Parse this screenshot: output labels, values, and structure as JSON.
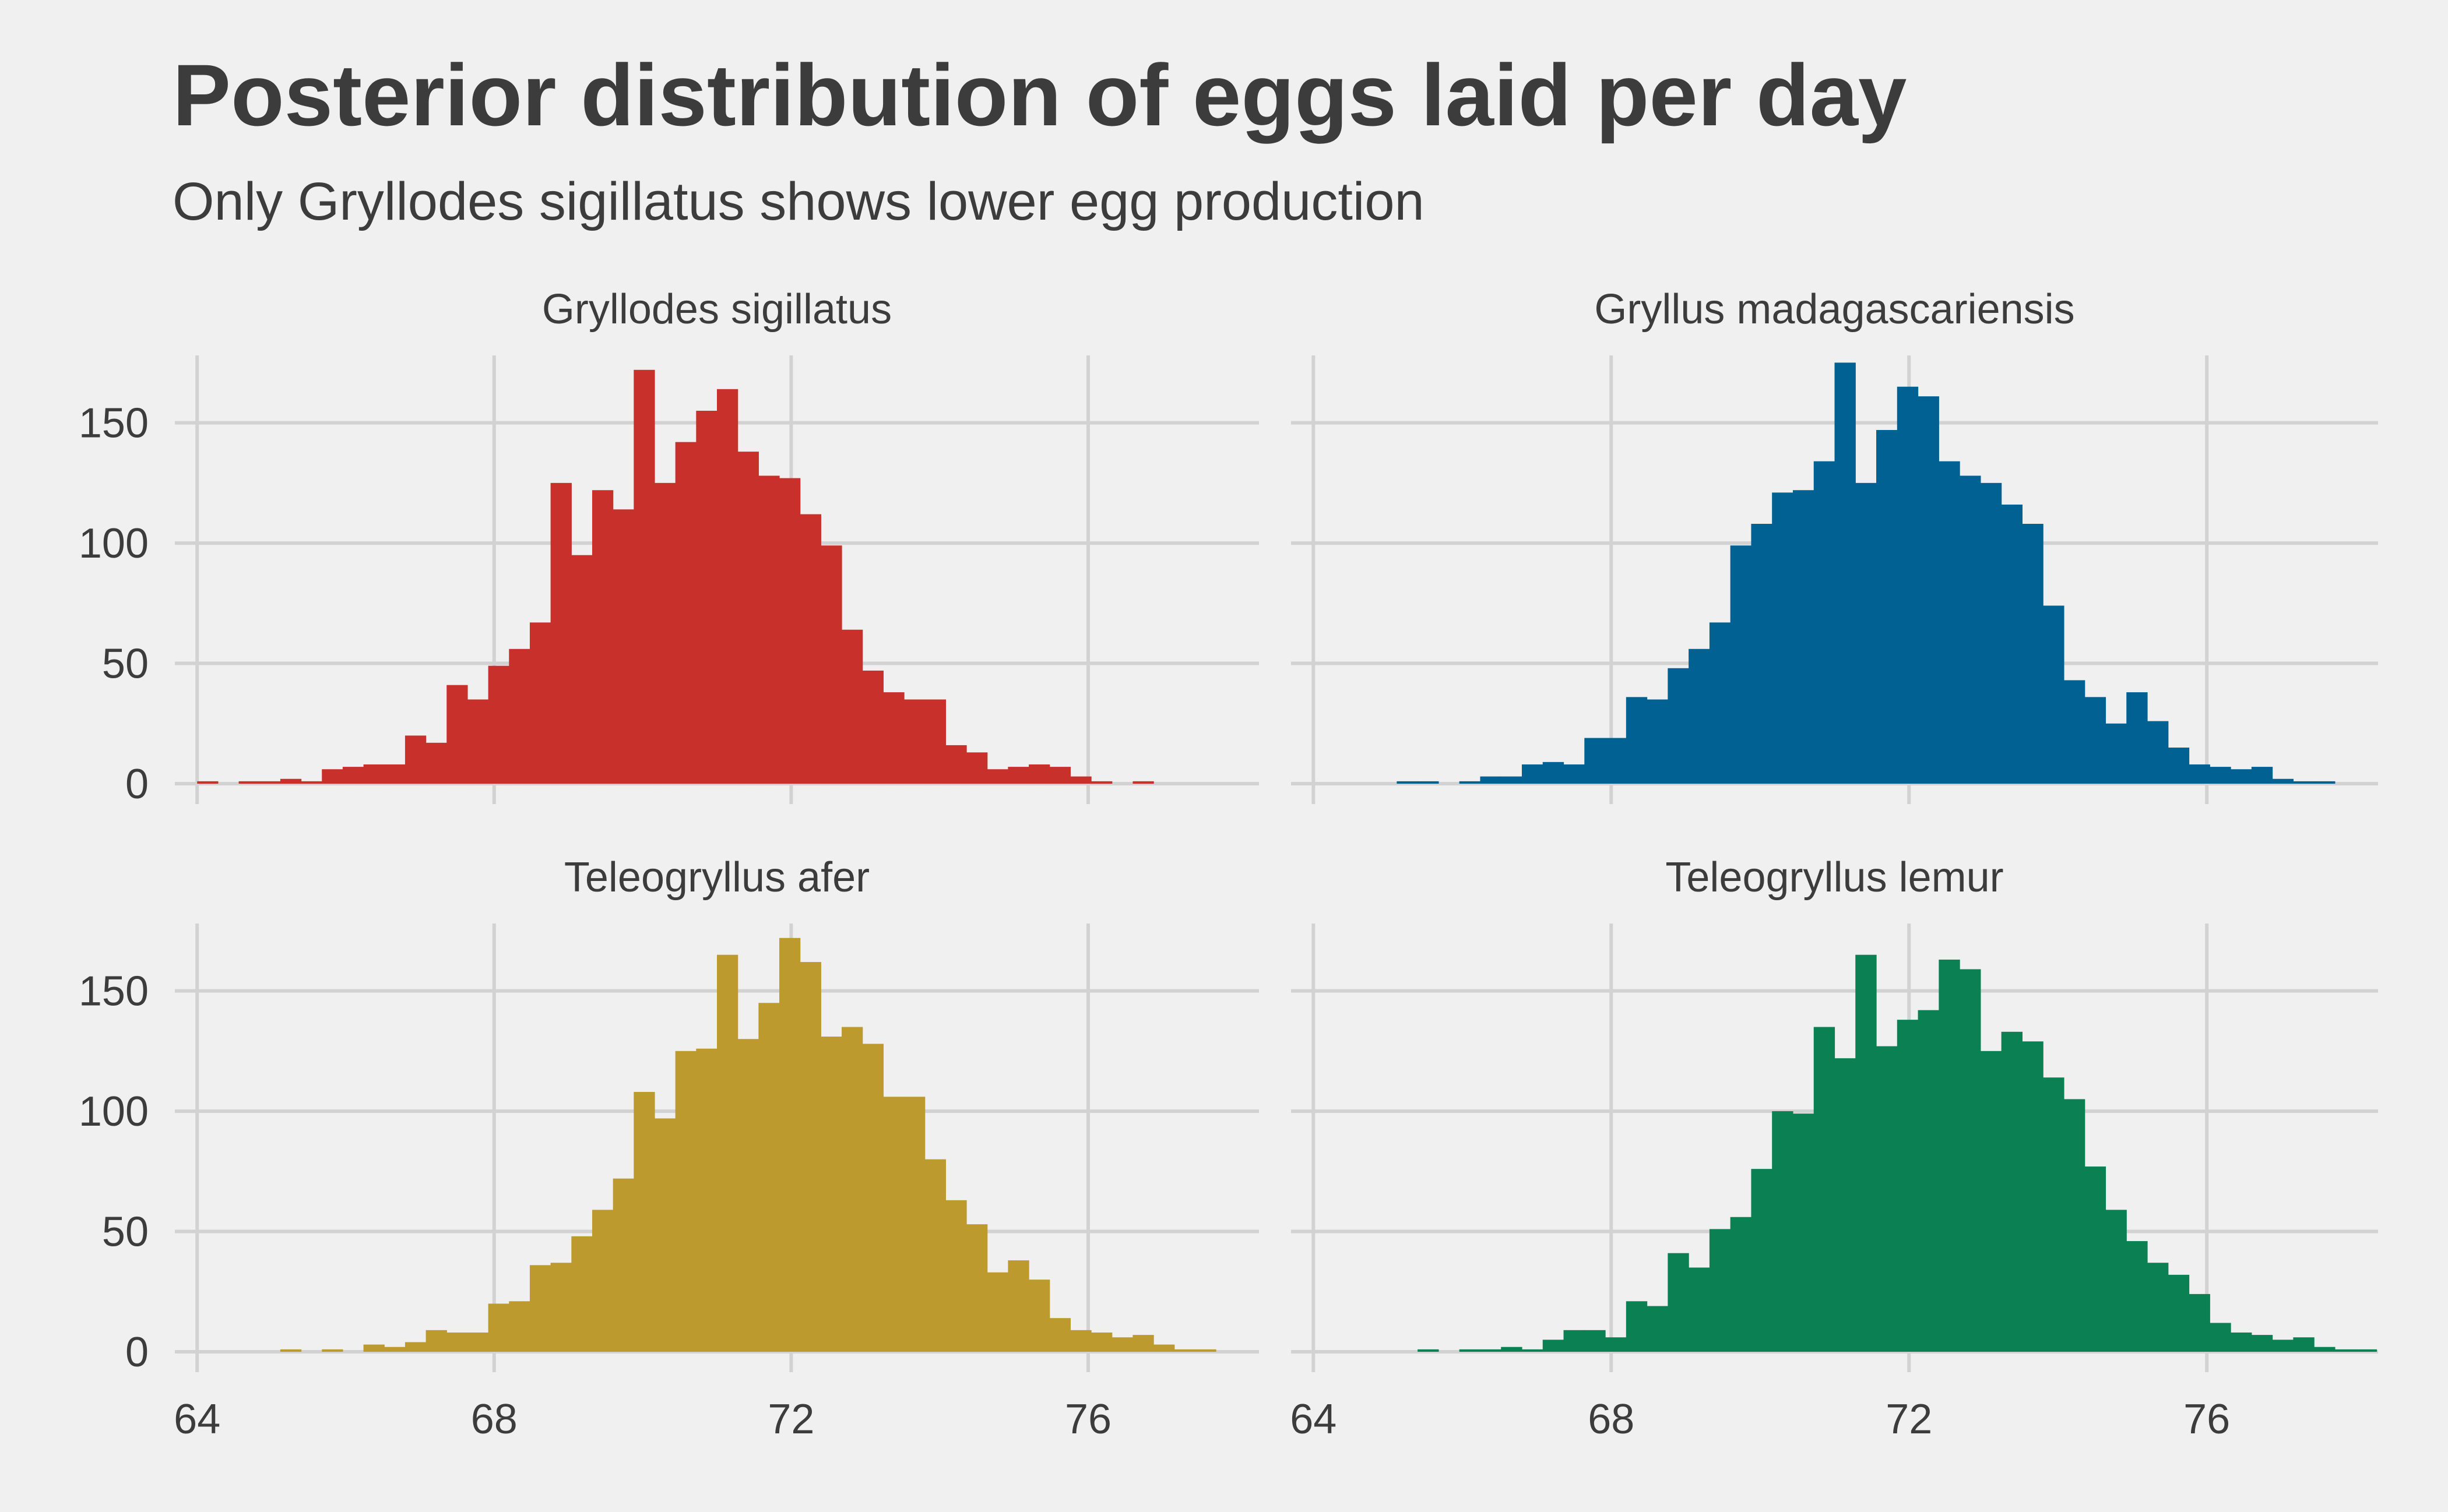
{
  "title": "Posterior distribution of eggs laid per day",
  "subtitle": "Only Gryllodes sigillatus shows lower egg production",
  "chart_data": {
    "type": "bar",
    "subtype": "histogram-facets",
    "title": "Posterior distribution of eggs laid per day",
    "subtitle": "Only Gryllodes sigillatus shows lower egg production",
    "xlabel": "",
    "ylabel": "",
    "xlim": [
      63.7,
      78.3
    ],
    "ylim": [
      0,
      178
    ],
    "xticks": [
      64,
      68,
      72,
      76
    ],
    "yticks": [
      0,
      50,
      100,
      150
    ],
    "bin_width": 0.28,
    "grid": true,
    "legend": "none",
    "facet_layout": "2x2",
    "series": [
      {
        "name": "Gryllodes sigillatus",
        "color": "#c8302b",
        "bin_start": 64.0,
        "values": [
          1,
          0,
          1,
          1,
          2,
          1,
          6,
          7,
          8,
          8,
          20,
          17,
          41,
          35,
          49,
          56,
          67,
          125,
          95,
          122,
          114,
          172,
          125,
          142,
          155,
          164,
          138,
          128,
          127,
          112,
          99,
          64,
          47,
          38,
          35,
          35,
          16,
          13,
          6,
          7,
          8,
          7,
          3,
          1,
          0,
          1
        ]
      },
      {
        "name": "Gryllus madagascariensis",
        "color": "#006192",
        "bin_start": 64.0,
        "values": [
          0,
          0,
          0,
          0,
          1,
          1,
          0,
          1,
          3,
          3,
          8,
          9,
          8,
          19,
          19,
          36,
          35,
          48,
          56,
          67,
          99,
          108,
          121,
          122,
          134,
          175,
          125,
          147,
          165,
          161,
          134,
          128,
          125,
          116,
          108,
          74,
          43,
          36,
          25,
          38,
          26,
          15,
          8,
          7,
          6,
          7,
          2,
          1,
          1
        ]
      },
      {
        "name": "Teleogryllus afer",
        "color": "#bd9a2e",
        "bin_start": 64.0,
        "values": [
          0,
          0,
          0,
          0,
          1,
          0,
          1,
          0,
          3,
          2,
          4,
          9,
          8,
          8,
          20,
          21,
          36,
          37,
          48,
          59,
          72,
          108,
          97,
          125,
          126,
          165,
          130,
          145,
          172,
          162,
          131,
          135,
          128,
          106,
          106,
          80,
          63,
          53,
          33,
          38,
          30,
          14,
          9,
          8,
          6,
          7,
          3,
          1,
          1
        ]
      },
      {
        "name": "Teleogryllus lemur",
        "color": "#0a8053",
        "bin_start": 64.0,
        "values": [
          0,
          0,
          0,
          0,
          0,
          1,
          0,
          1,
          1,
          2,
          1,
          5,
          9,
          9,
          6,
          21,
          19,
          41,
          35,
          51,
          56,
          76,
          100,
          99,
          135,
          122,
          165,
          127,
          138,
          142,
          163,
          159,
          125,
          133,
          129,
          114,
          105,
          77,
          59,
          46,
          37,
          32,
          24,
          12,
          8,
          7,
          5,
          6,
          2,
          1,
          1
        ]
      }
    ]
  }
}
